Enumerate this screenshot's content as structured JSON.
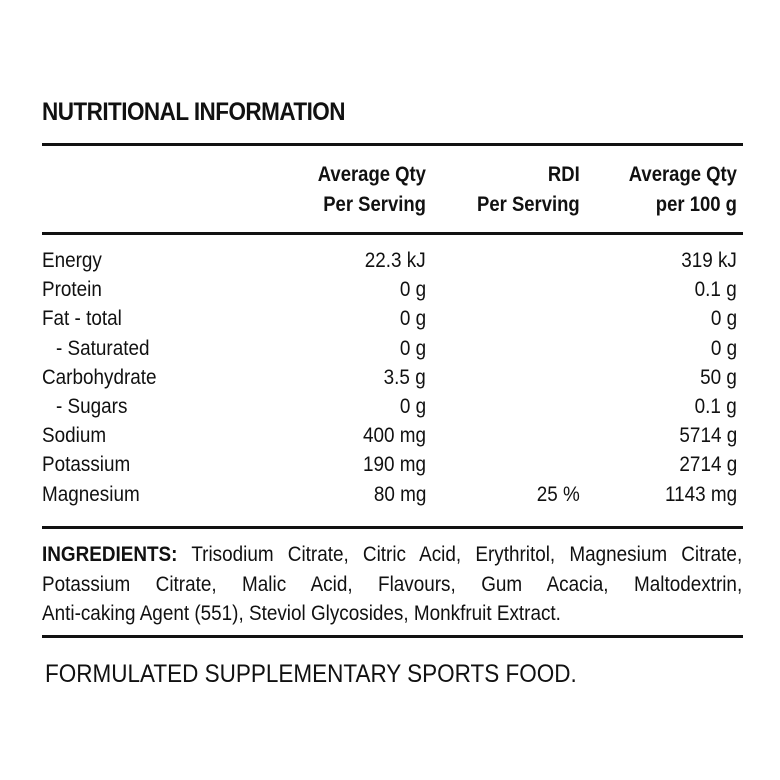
{
  "title": "NUTRITIONAL INFORMATION",
  "columns": {
    "per_serving": [
      "Average Qty",
      "Per Serving"
    ],
    "rdi": [
      "RDI",
      "Per Serving"
    ],
    "per_100g": [
      "Average Qty",
      "per 100 g"
    ]
  },
  "rows": [
    {
      "name": "Energy",
      "per_serving": "22.3 kJ",
      "rdi": "",
      "per_100g": "319 kJ"
    },
    {
      "name": "Protein",
      "per_serving": "0 g",
      "rdi": "",
      "per_100g": "0.1 g"
    },
    {
      "name": "Fat - total",
      "per_serving": "0 g",
      "rdi": "",
      "per_100g": "0 g"
    },
    {
      "name": "- Saturated",
      "per_serving": "0 g",
      "rdi": "",
      "per_100g": "0 g"
    },
    {
      "name": "Carbohydrate",
      "per_serving": "3.5 g",
      "rdi": "",
      "per_100g": "50 g"
    },
    {
      "name": "- Sugars",
      "per_serving": "0 g",
      "rdi": "",
      "per_100g": "0.1 g"
    },
    {
      "name": "Sodium",
      "per_serving": "400 mg",
      "rdi": "",
      "per_100g": "5714 g"
    },
    {
      "name": "Potassium",
      "per_serving": "190 mg",
      "rdi": "",
      "per_100g": "2714 g"
    },
    {
      "name": "Magnesium",
      "per_serving": "80 mg",
      "rdi": "25 %",
      "per_100g": "1143 mg"
    }
  ],
  "ingredients": {
    "label": "INGREDIENTS:",
    "lines": [
      " Trisodium Citrate, Citric Acid, Erythritol, Magnesium Citrate,",
      "Potassium Citrate, Malic Acid, Flavours, Gum Acacia, Maltodextrin,",
      "Anti-caking Agent (551), Steviol Glycosides, Monkfruit Extract."
    ]
  },
  "footer": "FORMULATED SUPPLEMENTARY SPORTS FOOD."
}
